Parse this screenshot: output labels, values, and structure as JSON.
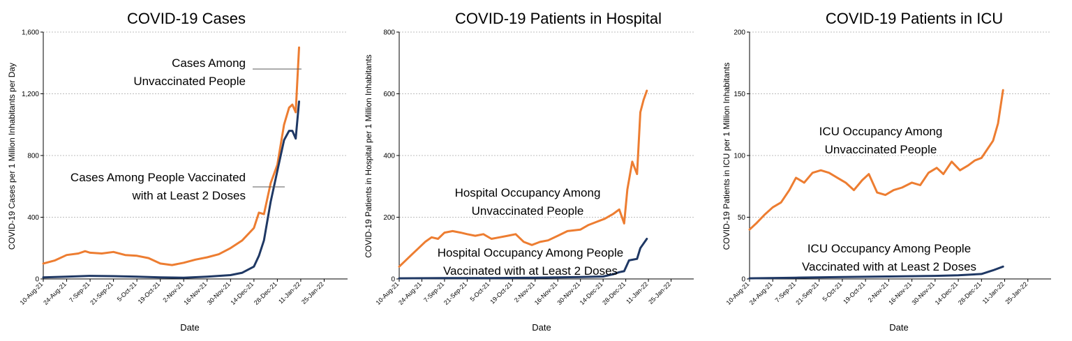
{
  "colors": {
    "unvaccinated": "#ED7D31",
    "vaccinated": "#1F3864",
    "grid": "#A6A6A6",
    "axis": "#000000"
  },
  "chart_data": [
    {
      "type": "line",
      "title": "COVID-19 Cases",
      "xlabel": "Date",
      "ylabel": "COVID-19 Cases per 1 Million Inhabitants per Day",
      "ylim": [
        0,
        1600
      ],
      "y_ticks": [
        "0",
        "400",
        "800",
        "1,200",
        "1,600"
      ],
      "y_tick_values": [
        0,
        400,
        800,
        1200,
        1600
      ],
      "x_ticks": [
        "10-Aug-21",
        "24-Aug-21",
        "7-Sep-21",
        "21-Sep-21",
        "5-Oct-21",
        "19-Oct-21",
        "2-Nov-21",
        "16-Nov-21",
        "30-Nov-21",
        "14-Dec-21",
        "28-Dec-21",
        "11-Jan-22",
        "25-Jan-22"
      ],
      "xlim": [
        "2021-08-10",
        "2022-02-08"
      ],
      "grid": true,
      "series": [
        {
          "key": "unvaccinated",
          "name": "Cases Among Unvaccinated People",
          "x": [
            "2021-08-10",
            "2021-08-17",
            "2021-08-24",
            "2021-08-31",
            "2021-09-04",
            "2021-09-07",
            "2021-09-14",
            "2021-09-21",
            "2021-09-28",
            "2021-10-05",
            "2021-10-12",
            "2021-10-19",
            "2021-10-26",
            "2021-11-02",
            "2021-11-09",
            "2021-11-16",
            "2021-11-23",
            "2021-11-30",
            "2021-12-07",
            "2021-12-14",
            "2021-12-17",
            "2021-12-20",
            "2021-12-24",
            "2021-12-28",
            "2022-01-01",
            "2022-01-04",
            "2022-01-06",
            "2022-01-08",
            "2022-01-10"
          ],
          "y": [
            100,
            120,
            155,
            165,
            180,
            170,
            165,
            175,
            155,
            150,
            135,
            100,
            90,
            105,
            125,
            140,
            160,
            200,
            250,
            330,
            430,
            420,
            620,
            740,
            1000,
            1110,
            1130,
            1080,
            1500
          ]
        },
        {
          "key": "vaccinated",
          "name": "Cases Among People Vaccinated with at Least 2 Doses",
          "x": [
            "2021-08-10",
            "2021-08-24",
            "2021-09-07",
            "2021-09-21",
            "2021-10-05",
            "2021-10-19",
            "2021-11-02",
            "2021-11-16",
            "2021-11-30",
            "2021-12-07",
            "2021-12-14",
            "2021-12-17",
            "2021-12-20",
            "2021-12-24",
            "2021-12-28",
            "2022-01-01",
            "2022-01-04",
            "2022-01-06",
            "2022-01-08",
            "2022-01-10"
          ],
          "y": [
            10,
            15,
            20,
            18,
            15,
            10,
            8,
            15,
            25,
            40,
            80,
            150,
            250,
            500,
            700,
            900,
            960,
            960,
            910,
            1150
          ]
        }
      ],
      "annotations": [
        {
          "series": "unvaccinated",
          "lines": [
            "Cases Among",
            "Unvaccinated People"
          ]
        },
        {
          "series": "vaccinated",
          "lines": [
            "Cases Among People Vaccinated",
            "with at Least 2 Doses"
          ]
        }
      ]
    },
    {
      "type": "line",
      "title": "COVID-19 Patients in Hospital",
      "xlabel": "Date",
      "ylabel": "COVID-19 Patients in Hospital per 1 Million Inhabitants",
      "ylim": [
        0,
        800
      ],
      "y_ticks": [
        "0",
        "200",
        "400",
        "600",
        "800"
      ],
      "y_tick_values": [
        0,
        200,
        400,
        600,
        800
      ],
      "x_ticks": [
        "10-Aug-21",
        "24-Aug-21",
        "7-Sep-21",
        "21-Sep-21",
        "5-Oct-21",
        "19-Oct-21",
        "2-Nov-21",
        "16-Nov-21",
        "30-Nov-21",
        "14-Dec-21",
        "28-Dec-21",
        "11-Jan-22",
        "25-Jan-22"
      ],
      "xlim": [
        "2021-08-10",
        "2022-02-08"
      ],
      "grid": true,
      "series": [
        {
          "key": "unvaccinated",
          "name": "Hospital Occupancy Among Unvaccinated People",
          "x": [
            "2021-08-10",
            "2021-08-14",
            "2021-08-18",
            "2021-08-22",
            "2021-08-26",
            "2021-08-30",
            "2021-09-03",
            "2021-09-07",
            "2021-09-12",
            "2021-09-17",
            "2021-09-21",
            "2021-09-26",
            "2021-10-01",
            "2021-10-06",
            "2021-10-11",
            "2021-10-16",
            "2021-10-21",
            "2021-10-26",
            "2021-10-31",
            "2021-11-05",
            "2021-11-10",
            "2021-11-16",
            "2021-11-22",
            "2021-11-30",
            "2021-12-05",
            "2021-12-10",
            "2021-12-15",
            "2021-12-20",
            "2021-12-24",
            "2021-12-27",
            "2021-12-29",
            "2022-01-01",
            "2022-01-04",
            "2022-01-06",
            "2022-01-08",
            "2022-01-10"
          ],
          "y": [
            40,
            60,
            80,
            100,
            120,
            135,
            130,
            150,
            155,
            150,
            145,
            140,
            145,
            130,
            135,
            140,
            145,
            120,
            110,
            120,
            125,
            140,
            155,
            160,
            175,
            185,
            195,
            210,
            225,
            180,
            290,
            380,
            340,
            540,
            580,
            610
          ]
        },
        {
          "key": "vaccinated",
          "name": "Hospital Occupancy Among People Vaccinated with at Least 2 Doses",
          "x": [
            "2021-08-10",
            "2021-09-07",
            "2021-10-05",
            "2021-11-02",
            "2021-11-30",
            "2021-12-14",
            "2021-12-20",
            "2021-12-24",
            "2021-12-27",
            "2021-12-30",
            "2022-01-04",
            "2022-01-06",
            "2022-01-10"
          ],
          "y": [
            2,
            3,
            3,
            4,
            6,
            8,
            15,
            22,
            25,
            60,
            65,
            100,
            130
          ]
        }
      ],
      "annotations": [
        {
          "series": "unvaccinated",
          "lines": [
            "Hospital Occupancy Among",
            "Unvaccinated People"
          ]
        },
        {
          "series": "vaccinated",
          "lines": [
            "Hospital Occupancy  Among People",
            "Vaccinated with at Least 2 Doses"
          ]
        }
      ]
    },
    {
      "type": "line",
      "title": "COVID-19 Patients in ICU",
      "xlabel": "Date",
      "ylabel": "COVID-19 Patients in ICU  per 1 Million Inhabitants",
      "ylim": [
        0,
        200
      ],
      "y_ticks": [
        "0",
        "50",
        "100",
        "150",
        "200"
      ],
      "y_tick_values": [
        0,
        50,
        100,
        150,
        200
      ],
      "x_ticks": [
        "10-Aug-21",
        "24-Aug-21",
        "7-Sep-21",
        "21-Sep-21",
        "5-Oct-21",
        "19-Oct-21",
        "2-Nov-21",
        "16-Nov-21",
        "30-Nov-21",
        "14-Dec-21",
        "28-Dec-21",
        "11-Jan-22",
        "25-Jan-22"
      ],
      "xlim": [
        "2021-08-10",
        "2022-02-08"
      ],
      "grid": true,
      "series": [
        {
          "key": "unvaccinated",
          "name": "ICU Occupancy Among Unvaccinated People",
          "x": [
            "2021-08-10",
            "2021-08-14",
            "2021-08-19",
            "2021-08-24",
            "2021-08-29",
            "2021-09-03",
            "2021-09-07",
            "2021-09-12",
            "2021-09-17",
            "2021-09-22",
            "2021-09-27",
            "2021-10-02",
            "2021-10-07",
            "2021-10-12",
            "2021-10-17",
            "2021-10-21",
            "2021-10-26",
            "2021-10-31",
            "2021-11-05",
            "2021-11-10",
            "2021-11-16",
            "2021-11-21",
            "2021-11-26",
            "2021-12-01",
            "2021-12-05",
            "2021-12-10",
            "2021-12-15",
            "2021-12-20",
            "2021-12-24",
            "2021-12-28",
            "2022-01-01",
            "2022-01-04",
            "2022-01-07",
            "2022-01-10"
          ],
          "y": [
            40,
            45,
            52,
            58,
            62,
            72,
            82,
            78,
            86,
            88,
            86,
            82,
            78,
            72,
            80,
            85,
            70,
            68,
            72,
            74,
            78,
            76,
            86,
            90,
            85,
            95,
            88,
            92,
            96,
            98,
            106,
            112,
            126,
            153
          ]
        },
        {
          "key": "vaccinated",
          "name": "ICU Occupancy Among People Vaccinated with at Least 2 Doses",
          "x": [
            "2021-08-10",
            "2021-09-07",
            "2021-10-05",
            "2021-11-02",
            "2021-11-30",
            "2021-12-14",
            "2021-12-28",
            "2022-01-04",
            "2022-01-10"
          ],
          "y": [
            0.5,
            1,
            1.5,
            2,
            2.5,
            3,
            4,
            7,
            10
          ]
        }
      ],
      "annotations": [
        {
          "series": "unvaccinated",
          "lines": [
            "ICU Occupancy Among",
            "Unvaccinated People"
          ]
        },
        {
          "series": "vaccinated",
          "lines": [
            "ICU Occupancy Among People",
            "Vaccinated with at Least 2 Doses"
          ]
        }
      ]
    }
  ]
}
